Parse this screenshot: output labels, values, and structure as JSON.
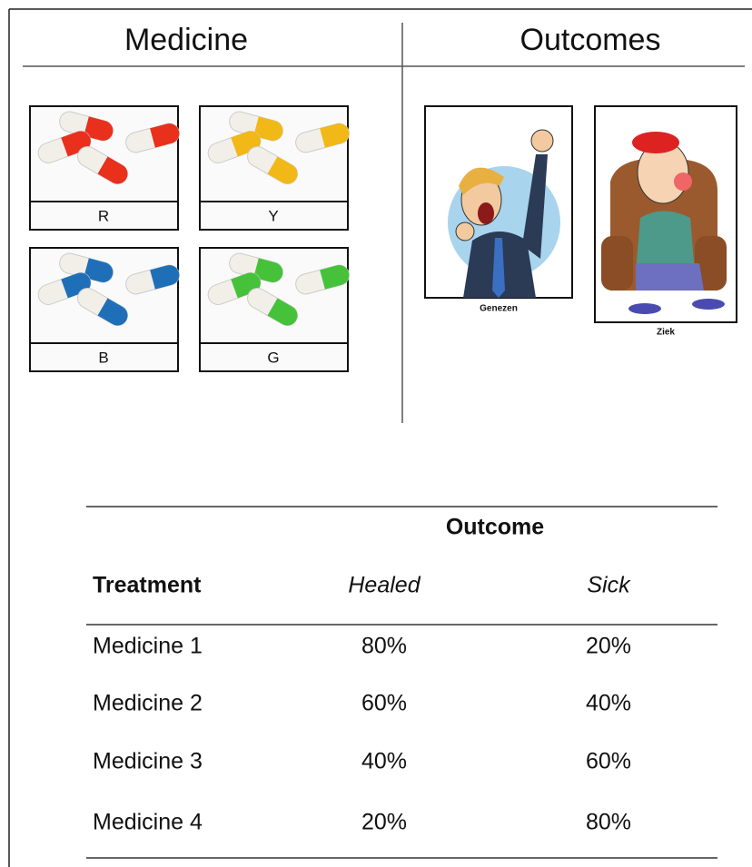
{
  "header": {
    "left": "Medicine",
    "right": "Outcomes"
  },
  "medicines": [
    "R",
    "Y",
    "B",
    "G"
  ],
  "outcomes": [
    "Genezen",
    "Ziek"
  ],
  "table": {
    "group_header": "Outcome",
    "columns": [
      "Treatment",
      "Healed",
      "Sick"
    ],
    "rows": [
      [
        "Medicine 1",
        "80%",
        "20%"
      ],
      [
        "Medicine 2",
        "60%",
        "40%"
      ],
      [
        "Medicine 3",
        "40%",
        "60%"
      ],
      [
        "Medicine 4",
        "20%",
        "80%"
      ]
    ]
  }
}
